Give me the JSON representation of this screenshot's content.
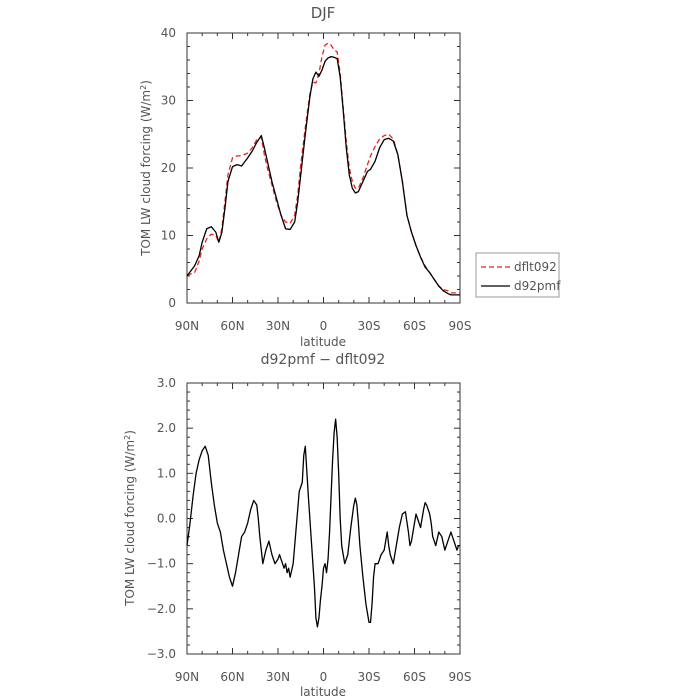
{
  "chart_data": [
    {
      "type": "line",
      "title": "DJF",
      "xlabel": "latitude",
      "ylabel": "TOM LW cloud forcing (W/m²)",
      "ylabel_main": "TOM LW cloud forcing (W/m",
      "ylabel_sup": "2",
      "ylabel_end": ")",
      "xlim": [
        90,
        -90
      ],
      "ylim": [
        0,
        40
      ],
      "x_ticks": [
        "90N",
        "60N",
        "30N",
        "0",
        "30S",
        "60S",
        "90S"
      ],
      "y_ticks": [
        "0",
        "10",
        "20",
        "30",
        "40"
      ],
      "legend": {
        "placement": "right",
        "entries": [
          "dflt092",
          "d92pmf"
        ]
      },
      "series": [
        {
          "name": "dflt092",
          "color": "#e8221c",
          "dash": true,
          "x": [
            90,
            85,
            82,
            80,
            77,
            74,
            71,
            69,
            67,
            65,
            63,
            60,
            57,
            54,
            50,
            47,
            44,
            41,
            39,
            37,
            34,
            31,
            28,
            25,
            22,
            19,
            17,
            15,
            12,
            9,
            7,
            5,
            3,
            1,
            -1,
            -3,
            -5,
            -7,
            -9,
            -11,
            -13,
            -15,
            -17,
            -19,
            -21,
            -23,
            -26,
            -29,
            -31,
            -34,
            -37,
            -40,
            -43,
            -46,
            -49,
            -52,
            -55,
            -58,
            -61,
            -64,
            -67,
            -70,
            -73,
            -76,
            -79,
            -82,
            -84,
            -86,
            -88,
            -89,
            -90
          ],
          "y": [
            4.1,
            4.5,
            6.2,
            8.0,
            9.5,
            10.2,
            10.0,
            9.0,
            11.0,
            15.0,
            19.0,
            21.5,
            21.8,
            21.8,
            22.2,
            23.0,
            24.2,
            24.6,
            22.0,
            20.0,
            17.5,
            15.0,
            13.0,
            12.0,
            11.8,
            13.0,
            16.0,
            20.5,
            26.0,
            31.0,
            32.7,
            32.6,
            34.0,
            36.5,
            38.2,
            38.5,
            38.2,
            37.5,
            37.2,
            34.0,
            29.0,
            24.0,
            20.0,
            18.0,
            17.0,
            17.0,
            18.5,
            20.5,
            21.8,
            23.2,
            24.3,
            24.8,
            25.0,
            24.3,
            22.0,
            18.0,
            13.0,
            10.5,
            8.5,
            6.8,
            5.5,
            4.5,
            3.5,
            2.5,
            2.0,
            1.8,
            1.5,
            1.5,
            1.5,
            1.5,
            1.5
          ]
        },
        {
          "name": "d92pmf",
          "color": "#000000",
          "dash": false,
          "x": [
            90,
            85,
            82,
            80,
            77,
            74,
            71,
            69,
            67,
            65,
            63,
            60,
            57,
            54,
            50,
            47,
            44,
            41,
            39,
            37,
            34,
            31,
            28,
            25,
            22,
            19,
            17,
            15,
            12,
            9,
            7,
            5,
            3,
            1,
            -1,
            -3,
            -5,
            -7,
            -9,
            -11,
            -13,
            -15,
            -17,
            -19,
            -21,
            -23,
            -26,
            -29,
            -31,
            -34,
            -37,
            -40,
            -43,
            -46,
            -49,
            -52,
            -55,
            -58,
            -61,
            -64,
            -67,
            -70,
            -73,
            -76,
            -79,
            -82,
            -84,
            -86,
            -88,
            -89,
            -90
          ],
          "y": [
            4.0,
            5.5,
            7.0,
            9.0,
            11.0,
            11.3,
            10.5,
            9.0,
            10.5,
            14.0,
            18.0,
            20.2,
            20.5,
            20.3,
            21.5,
            22.5,
            23.8,
            24.8,
            23.0,
            21.0,
            18.0,
            15.5,
            13.0,
            11.0,
            10.9,
            12.0,
            15.0,
            19.0,
            25.0,
            30.5,
            33.2,
            34.2,
            33.6,
            34.5,
            35.8,
            36.3,
            36.5,
            36.4,
            36.2,
            33.5,
            28.5,
            23.0,
            19.0,
            17.0,
            16.3,
            16.5,
            18.0,
            19.5,
            19.8,
            21.0,
            23.0,
            24.2,
            24.4,
            24.0,
            22.0,
            18.0,
            13.0,
            10.5,
            8.5,
            6.8,
            5.3,
            4.5,
            3.5,
            2.5,
            1.8,
            1.4,
            1.2,
            1.2,
            1.2,
            1.2,
            1.2
          ]
        }
      ]
    },
    {
      "type": "line",
      "title": "d92pmf − dflt092",
      "xlabel": "latitude",
      "ylabel": "TOM LW cloud forcing (W/m²)",
      "ylabel_main": "TOM LW cloud forcing (W/m",
      "ylabel_sup": "2",
      "ylabel_end": ")",
      "xlim": [
        90,
        -90
      ],
      "ylim": [
        -3,
        3
      ],
      "x_ticks": [
        "90N",
        "60N",
        "30N",
        "0",
        "30S",
        "60S",
        "90S"
      ],
      "y_ticks": [
        "−3.0",
        "−2.0",
        "−1.0",
        "0.0",
        "1.0",
        "2.0",
        "3.0"
      ],
      "series": [
        {
          "name": "",
          "color": "#000000",
          "dash": false,
          "x": [
            90,
            88,
            86,
            84,
            82,
            80,
            78,
            76,
            74,
            72,
            71,
            70,
            68,
            66,
            64,
            62,
            60,
            58,
            56,
            55,
            54,
            52,
            50,
            48,
            46,
            44,
            43,
            42,
            41,
            40,
            38,
            36,
            34,
            32,
            30,
            29,
            28,
            27,
            26,
            25,
            24,
            23,
            22,
            20,
            18,
            16,
            15,
            14,
            13,
            12,
            10,
            8,
            6,
            5,
            4,
            3,
            2,
            1,
            0,
            -1,
            -2,
            -3,
            -4,
            -5,
            -6,
            -7,
            -8,
            -9,
            -10,
            -11,
            -12,
            -14,
            -16,
            -18,
            -20,
            -21,
            -22,
            -23,
            -24,
            -26,
            -28,
            -30,
            -31,
            -32,
            -33,
            -34,
            -36,
            -38,
            -40,
            -42,
            -43,
            -44,
            -46,
            -47,
            -48,
            -50,
            -52,
            -54,
            -56,
            -57,
            -58,
            -59,
            -60,
            -61,
            -62,
            -64,
            -66,
            -67,
            -68,
            -70,
            -71,
            -72,
            -74,
            -76,
            -78,
            -80,
            -82,
            -84,
            -86,
            -88,
            -89,
            -90
          ],
          "y": [
            -0.6,
            -0.1,
            0.5,
            1.0,
            1.3,
            1.5,
            1.6,
            1.4,
            0.8,
            0.3,
            0.1,
            -0.1,
            -0.3,
            -0.7,
            -1.0,
            -1.3,
            -1.5,
            -1.2,
            -0.8,
            -0.6,
            -0.4,
            -0.3,
            -0.1,
            0.2,
            0.4,
            0.3,
            0.0,
            -0.4,
            -0.7,
            -1.0,
            -0.7,
            -0.5,
            -0.8,
            -1.0,
            -0.9,
            -0.8,
            -0.9,
            -1.0,
            -1.1,
            -1.0,
            -1.2,
            -1.1,
            -1.3,
            -1.0,
            -0.2,
            0.6,
            0.7,
            0.8,
            1.4,
            1.6,
            0.5,
            -0.5,
            -1.5,
            -2.2,
            -2.4,
            -2.2,
            -1.8,
            -1.5,
            -1.1,
            -1.0,
            -1.2,
            -0.9,
            -0.3,
            0.5,
            1.3,
            1.9,
            2.2,
            1.8,
            1.0,
            0.0,
            -0.6,
            -1.0,
            -0.8,
            -0.2,
            0.3,
            0.45,
            0.3,
            -0.1,
            -0.6,
            -1.3,
            -1.9,
            -2.3,
            -2.3,
            -1.9,
            -1.3,
            -1.0,
            -1.0,
            -0.8,
            -0.7,
            -0.3,
            -0.6,
            -0.8,
            -1.0,
            -0.8,
            -0.6,
            -0.2,
            0.1,
            0.15,
            -0.3,
            -0.6,
            -0.5,
            -0.3,
            -0.1,
            0.1,
            0.0,
            -0.2,
            0.2,
            0.35,
            0.3,
            0.1,
            -0.1,
            -0.4,
            -0.6,
            -0.3,
            -0.4,
            -0.7,
            -0.5,
            -0.3,
            -0.5,
            -0.7,
            -0.6,
            -0.6
          ]
        }
      ]
    }
  ]
}
